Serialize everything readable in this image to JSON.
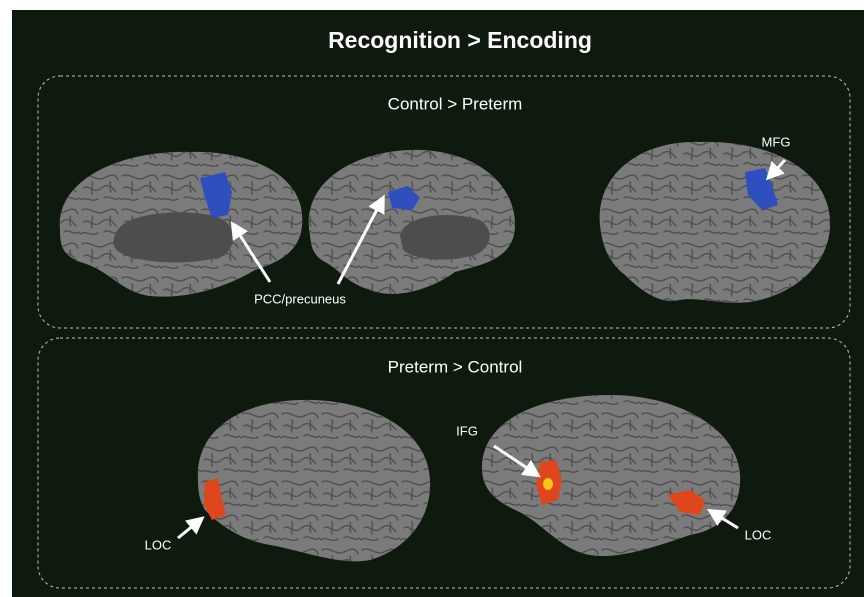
{
  "title": "Recognition > Encoding",
  "panels": [
    {
      "title": "Control > Preterm",
      "labels": [
        "PCC/precuneus",
        "MFG"
      ]
    },
    {
      "title": "Preterm > Control",
      "labels": [
        "IFG",
        "LOC",
        "LOC"
      ]
    }
  ]
}
